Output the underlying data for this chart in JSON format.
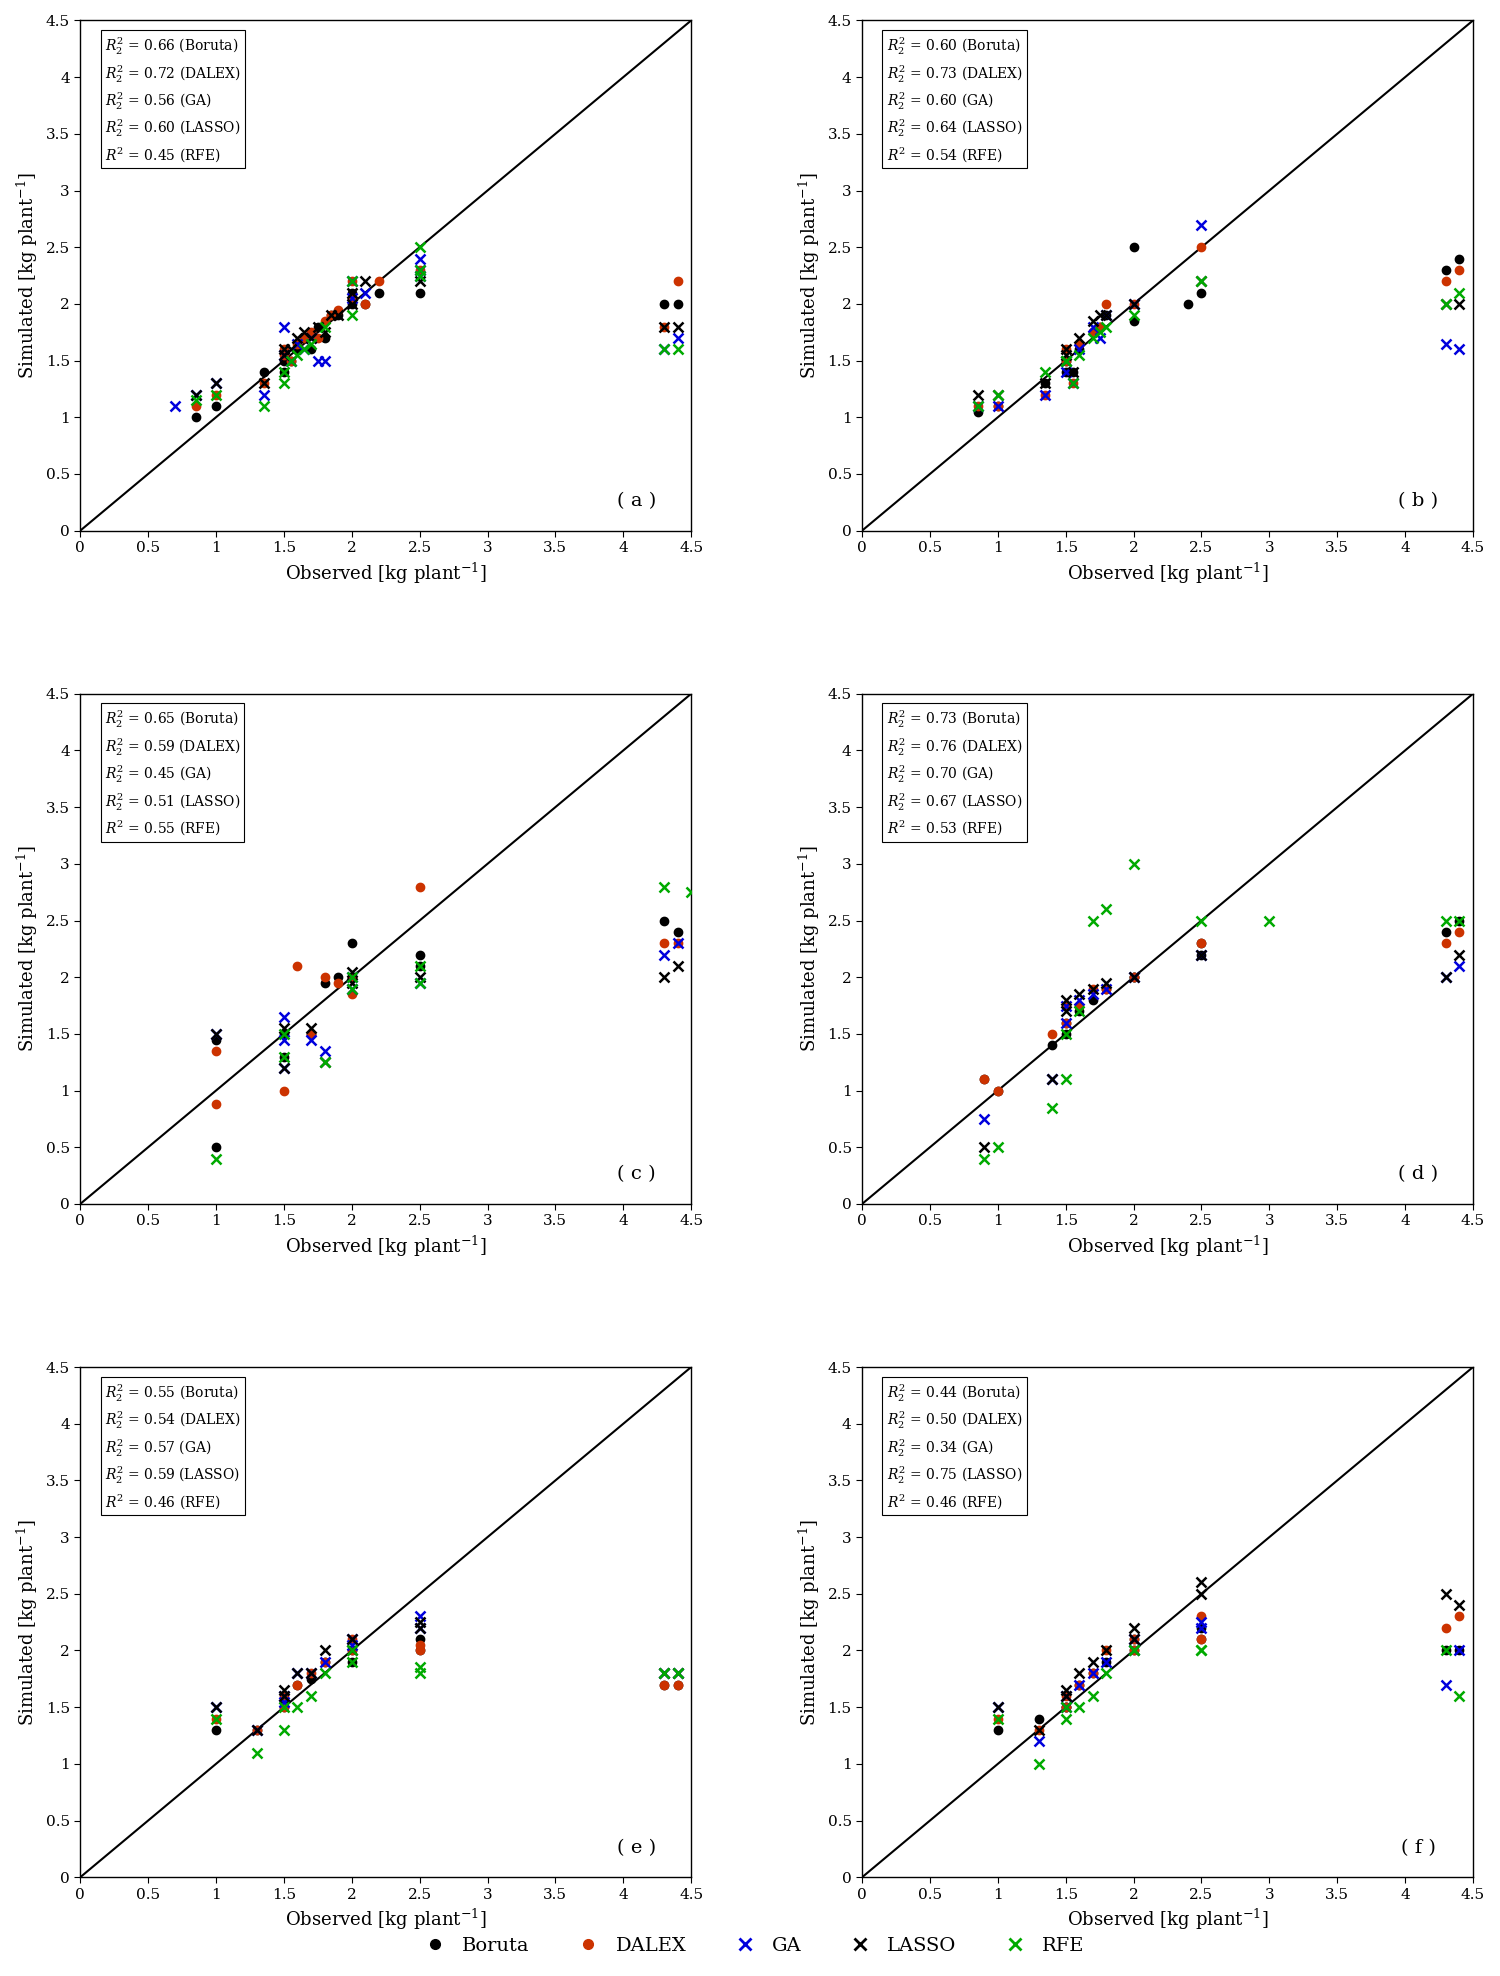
{
  "panels": [
    {
      "label": "( a )",
      "r2": {
        "Boruta": 0.66,
        "DALEX": 0.72,
        "GA": 0.56,
        "LASSO": 0.6,
        "RFE": 0.45
      },
      "Boruta": {
        "obs": [
          0.85,
          1.0,
          1.35,
          1.5,
          1.5,
          1.55,
          1.6,
          1.65,
          1.7,
          1.75,
          1.8,
          1.85,
          1.9,
          2.0,
          2.0,
          2.0,
          2.1,
          2.2,
          2.5,
          4.3,
          4.4
        ],
        "sim": [
          1.0,
          1.1,
          1.4,
          1.5,
          1.4,
          1.5,
          1.6,
          1.7,
          1.6,
          1.8,
          1.7,
          1.9,
          1.9,
          2.0,
          2.1,
          2.05,
          2.0,
          2.1,
          2.1,
          2.0,
          2.0
        ]
      },
      "DALEX": {
        "obs": [
          0.85,
          1.0,
          1.35,
          1.5,
          1.5,
          1.55,
          1.6,
          1.65,
          1.7,
          1.75,
          1.8,
          1.85,
          1.9,
          2.0,
          2.0,
          2.1,
          2.2,
          2.5,
          4.3,
          4.4
        ],
        "sim": [
          1.1,
          1.2,
          1.3,
          1.55,
          1.6,
          1.5,
          1.65,
          1.7,
          1.75,
          1.7,
          1.85,
          1.9,
          1.95,
          2.05,
          2.2,
          2.0,
          2.2,
          2.3,
          1.8,
          2.2
        ]
      },
      "GA": {
        "obs": [
          0.7,
          0.85,
          1.0,
          1.35,
          1.5,
          1.5,
          1.55,
          1.6,
          1.65,
          1.7,
          1.75,
          1.8,
          2.0,
          2.0,
          2.1,
          2.5,
          2.5,
          2.5,
          4.3,
          4.4
        ],
        "sim": [
          1.1,
          1.2,
          1.3,
          1.2,
          1.55,
          1.8,
          1.5,
          1.65,
          1.6,
          1.7,
          1.5,
          1.5,
          2.05,
          2.2,
          2.1,
          2.25,
          2.3,
          2.4,
          1.6,
          1.7
        ]
      },
      "LASSO": {
        "obs": [
          0.85,
          1.0,
          1.35,
          1.5,
          1.5,
          1.55,
          1.6,
          1.65,
          1.7,
          1.75,
          1.8,
          1.85,
          1.9,
          2.0,
          2.0,
          2.1,
          2.5,
          4.3,
          4.4
        ],
        "sim": [
          1.2,
          1.3,
          1.3,
          1.6,
          1.55,
          1.6,
          1.7,
          1.75,
          1.7,
          1.8,
          1.75,
          1.9,
          1.9,
          2.0,
          2.1,
          2.2,
          2.2,
          1.8,
          1.8
        ]
      },
      "RFE": {
        "obs": [
          0.85,
          1.0,
          1.35,
          1.5,
          1.5,
          1.55,
          1.6,
          1.65,
          1.7,
          1.8,
          2.0,
          2.0,
          2.5,
          2.5,
          2.5,
          4.3,
          4.4
        ],
        "sim": [
          1.15,
          1.2,
          1.1,
          1.3,
          1.4,
          1.5,
          1.55,
          1.6,
          1.65,
          1.8,
          1.9,
          2.2,
          2.25,
          2.3,
          2.5,
          1.6,
          1.6
        ]
      }
    },
    {
      "label": "( b )",
      "r2": {
        "Boruta": 0.6,
        "DALEX": 0.73,
        "GA": 0.6,
        "LASSO": 0.64,
        "RFE": 0.54
      },
      "Boruta": {
        "obs": [
          0.85,
          1.0,
          1.35,
          1.5,
          1.5,
          1.55,
          1.6,
          1.7,
          1.75,
          1.8,
          2.0,
          2.0,
          2.4,
          2.5,
          4.3,
          4.4
        ],
        "sim": [
          1.05,
          1.1,
          1.3,
          1.4,
          1.5,
          1.4,
          1.6,
          1.75,
          1.8,
          1.9,
          1.85,
          2.5,
          2.0,
          2.1,
          2.3,
          2.4
        ]
      },
      "DALEX": {
        "obs": [
          0.85,
          1.0,
          1.35,
          1.5,
          1.5,
          1.55,
          1.6,
          1.7,
          1.75,
          1.8,
          2.0,
          2.5,
          4.3,
          4.4
        ],
        "sim": [
          1.1,
          1.1,
          1.2,
          1.5,
          1.6,
          1.3,
          1.65,
          1.75,
          1.8,
          2.0,
          2.0,
          2.5,
          2.2,
          2.3
        ]
      },
      "GA": {
        "obs": [
          0.85,
          1.0,
          1.35,
          1.5,
          1.5,
          1.55,
          1.6,
          1.7,
          1.75,
          1.8,
          2.0,
          2.5,
          4.3,
          4.4
        ],
        "sim": [
          1.1,
          1.1,
          1.2,
          1.4,
          1.5,
          1.3,
          1.6,
          1.8,
          1.7,
          1.9,
          2.0,
          2.7,
          1.65,
          1.6
        ]
      },
      "LASSO": {
        "obs": [
          0.85,
          1.0,
          1.35,
          1.5,
          1.5,
          1.55,
          1.6,
          1.7,
          1.75,
          1.8,
          2.0,
          2.5,
          4.3,
          4.4
        ],
        "sim": [
          1.2,
          1.2,
          1.3,
          1.55,
          1.6,
          1.4,
          1.7,
          1.85,
          1.9,
          1.9,
          2.0,
          2.2,
          2.0,
          2.0
        ]
      },
      "RFE": {
        "obs": [
          0.85,
          1.0,
          1.35,
          1.5,
          1.5,
          1.55,
          1.6,
          1.7,
          1.75,
          1.8,
          2.0,
          2.5,
          4.3,
          4.4
        ],
        "sim": [
          1.1,
          1.2,
          1.4,
          1.5,
          1.5,
          1.3,
          1.55,
          1.7,
          1.75,
          1.8,
          1.9,
          2.2,
          2.0,
          2.1
        ]
      }
    },
    {
      "label": "( c )",
      "r2": {
        "Boruta": 0.65,
        "DALEX": 0.59,
        "GA": 0.45,
        "LASSO": 0.51,
        "RFE": 0.55
      },
      "Boruta": {
        "obs": [
          1.0,
          1.0,
          1.5,
          1.5,
          1.7,
          1.8,
          1.9,
          2.0,
          2.0,
          2.5,
          2.5,
          4.3,
          4.4
        ],
        "sim": [
          1.45,
          0.5,
          1.5,
          1.3,
          1.5,
          1.95,
          2.0,
          2.3,
          2.0,
          2.2,
          2.1,
          2.5,
          2.4
        ]
      },
      "DALEX": {
        "obs": [
          1.0,
          1.0,
          1.5,
          1.6,
          1.7,
          1.8,
          1.9,
          2.0,
          2.0,
          2.5,
          4.3,
          4.4
        ],
        "sim": [
          1.35,
          0.88,
          1.0,
          2.1,
          1.5,
          2.0,
          1.95,
          2.0,
          1.85,
          2.8,
          2.3,
          2.3
        ]
      },
      "GA": {
        "obs": [
          1.0,
          1.5,
          1.5,
          1.5,
          1.7,
          1.8,
          2.0,
          2.0,
          2.5,
          4.3,
          4.4
        ],
        "sim": [
          1.5,
          1.45,
          1.2,
          1.65,
          1.45,
          1.35,
          2.0,
          1.9,
          1.95,
          2.2,
          2.3
        ]
      },
      "LASSO": {
        "obs": [
          1.0,
          1.5,
          1.5,
          1.7,
          1.8,
          2.0,
          2.0,
          2.5,
          4.3,
          4.4
        ],
        "sim": [
          1.5,
          1.55,
          1.2,
          1.55,
          1.25,
          2.05,
          1.95,
          2.0,
          2.0,
          2.1
        ]
      },
      "RFE": {
        "obs": [
          1.0,
          1.5,
          1.5,
          1.8,
          2.0,
          2.0,
          2.5,
          2.5,
          4.3,
          4.5
        ],
        "sim": [
          0.4,
          1.5,
          1.3,
          1.25,
          1.9,
          2.0,
          1.95,
          2.1,
          2.8,
          2.75
        ]
      }
    },
    {
      "label": "( d )",
      "r2": {
        "Boruta": 0.73,
        "DALEX": 0.76,
        "GA": 0.7,
        "LASSO": 0.67,
        "RFE": 0.53
      },
      "Boruta": {
        "obs": [
          0.9,
          1.0,
          1.4,
          1.5,
          1.5,
          1.6,
          1.7,
          1.8,
          2.0,
          2.0,
          2.5,
          2.5,
          4.3,
          4.4
        ],
        "sim": [
          1.1,
          1.0,
          1.4,
          1.5,
          1.6,
          1.7,
          1.8,
          1.9,
          2.0,
          2.0,
          2.2,
          2.3,
          2.4,
          2.5
        ]
      },
      "DALEX": {
        "obs": [
          0.9,
          1.0,
          1.4,
          1.5,
          1.5,
          1.6,
          1.7,
          1.8,
          2.0,
          2.5,
          4.3,
          4.4
        ],
        "sim": [
          1.1,
          1.0,
          1.5,
          1.6,
          1.75,
          1.75,
          1.9,
          1.9,
          2.0,
          2.3,
          2.3,
          2.4
        ]
      },
      "GA": {
        "obs": [
          0.9,
          1.4,
          1.5,
          1.5,
          1.6,
          1.7,
          1.8,
          2.0,
          2.5,
          4.3,
          4.4
        ],
        "sim": [
          0.75,
          1.1,
          1.6,
          1.75,
          1.8,
          1.85,
          1.9,
          2.0,
          2.2,
          2.0,
          2.1
        ]
      },
      "LASSO": {
        "obs": [
          0.9,
          1.4,
          1.5,
          1.5,
          1.6,
          1.7,
          1.8,
          2.0,
          2.5,
          4.3,
          4.4
        ],
        "sim": [
          0.5,
          1.1,
          1.7,
          1.8,
          1.85,
          1.9,
          1.95,
          2.0,
          2.2,
          2.0,
          2.2
        ]
      },
      "RFE": {
        "obs": [
          0.9,
          1.0,
          1.4,
          1.5,
          1.5,
          1.6,
          1.7,
          1.8,
          2.0,
          2.5,
          3.0,
          4.3,
          4.4
        ],
        "sim": [
          0.4,
          0.5,
          0.85,
          1.1,
          1.5,
          1.7,
          2.5,
          2.6,
          3.0,
          2.5,
          2.5,
          2.5,
          2.5
        ]
      }
    },
    {
      "label": "( e )",
      "r2": {
        "Boruta": 0.55,
        "DALEX": 0.54,
        "GA": 0.57,
        "LASSO": 0.59,
        "RFE": 0.46
      },
      "Boruta": {
        "obs": [
          1.0,
          1.3,
          1.5,
          1.5,
          1.6,
          1.7,
          1.8,
          2.0,
          2.0,
          2.5,
          2.5,
          4.3,
          4.4
        ],
        "sim": [
          1.3,
          1.3,
          1.5,
          1.55,
          1.7,
          1.75,
          1.9,
          1.9,
          2.0,
          2.0,
          2.1,
          1.7,
          1.7
        ]
      },
      "DALEX": {
        "obs": [
          1.0,
          1.3,
          1.5,
          1.5,
          1.6,
          1.7,
          1.8,
          2.0,
          2.0,
          2.5,
          2.5,
          4.3,
          4.4
        ],
        "sim": [
          1.4,
          1.3,
          1.5,
          1.6,
          1.7,
          1.8,
          1.9,
          2.0,
          2.1,
          2.0,
          2.05,
          1.7,
          1.7
        ]
      },
      "GA": {
        "obs": [
          1.0,
          1.3,
          1.5,
          1.5,
          1.6,
          1.7,
          1.8,
          2.0,
          2.0,
          2.5,
          2.5,
          4.3,
          4.4
        ],
        "sim": [
          1.5,
          1.3,
          1.6,
          1.55,
          1.8,
          1.8,
          1.9,
          2.1,
          2.05,
          2.2,
          2.3,
          1.8,
          1.8
        ]
      },
      "LASSO": {
        "obs": [
          1.0,
          1.3,
          1.5,
          1.5,
          1.6,
          1.7,
          1.8,
          2.0,
          2.0,
          2.5,
          2.5,
          4.3,
          4.4
        ],
        "sim": [
          1.5,
          1.3,
          1.6,
          1.65,
          1.8,
          1.8,
          2.0,
          2.0,
          2.1,
          2.2,
          2.25,
          1.8,
          1.8
        ]
      },
      "RFE": {
        "obs": [
          1.0,
          1.3,
          1.5,
          1.5,
          1.6,
          1.7,
          1.8,
          2.0,
          2.0,
          2.5,
          2.5,
          4.3,
          4.4
        ],
        "sim": [
          1.4,
          1.1,
          1.3,
          1.5,
          1.5,
          1.6,
          1.8,
          1.9,
          2.0,
          1.8,
          1.85,
          1.8,
          1.8
        ]
      }
    },
    {
      "label": "( f )",
      "r2": {
        "Boruta": 0.44,
        "DALEX": 0.5,
        "GA": 0.34,
        "LASSO": 0.75,
        "RFE": 0.46
      },
      "Boruta": {
        "obs": [
          1.0,
          1.3,
          1.5,
          1.5,
          1.6,
          1.7,
          1.8,
          2.0,
          2.0,
          2.5,
          2.5,
          4.3,
          4.4
        ],
        "sim": [
          1.3,
          1.4,
          1.5,
          1.5,
          1.7,
          1.8,
          1.9,
          2.0,
          2.1,
          2.2,
          2.1,
          2.0,
          2.0
        ]
      },
      "DALEX": {
        "obs": [
          1.0,
          1.3,
          1.5,
          1.5,
          1.6,
          1.7,
          1.8,
          2.0,
          2.0,
          2.5,
          2.5,
          4.3,
          4.4
        ],
        "sim": [
          1.4,
          1.3,
          1.5,
          1.6,
          1.7,
          1.8,
          2.0,
          2.0,
          2.1,
          2.3,
          2.1,
          2.2,
          2.3
        ]
      },
      "GA": {
        "obs": [
          1.0,
          1.3,
          1.5,
          1.5,
          1.6,
          1.7,
          1.8,
          2.0,
          2.0,
          2.5,
          2.5,
          4.3,
          4.4
        ],
        "sim": [
          1.5,
          1.2,
          1.5,
          1.6,
          1.7,
          1.8,
          1.9,
          2.0,
          2.1,
          2.2,
          2.25,
          1.7,
          2.0
        ]
      },
      "LASSO": {
        "obs": [
          1.0,
          1.3,
          1.5,
          1.5,
          1.6,
          1.7,
          1.8,
          2.0,
          2.0,
          2.5,
          2.5,
          4.3,
          4.4
        ],
        "sim": [
          1.5,
          1.3,
          1.6,
          1.65,
          1.8,
          1.9,
          2.0,
          2.1,
          2.2,
          2.5,
          2.6,
          2.5,
          2.4
        ]
      },
      "RFE": {
        "obs": [
          1.0,
          1.3,
          1.5,
          1.5,
          1.6,
          1.7,
          1.8,
          2.0,
          2.0,
          2.5,
          2.5,
          4.3,
          4.4
        ],
        "sim": [
          1.4,
          1.0,
          1.4,
          1.5,
          1.5,
          1.6,
          1.8,
          2.0,
          2.0,
          2.0,
          2.0,
          2.0,
          1.6
        ]
      }
    }
  ],
  "methods": [
    "Boruta",
    "DALEX",
    "GA",
    "LASSO",
    "RFE"
  ],
  "method_colors": {
    "Boruta": "#000000",
    "DALEX": "#cc3300",
    "GA": "#0000dd",
    "LASSO": "#000000",
    "RFE": "#00aa00"
  },
  "method_markers": {
    "Boruta": "o",
    "DALEX": "o",
    "GA": "x",
    "LASSO": "x",
    "RFE": "x"
  },
  "xlim": [
    0,
    4.5
  ],
  "ylim": [
    0,
    4.5
  ],
  "xticks": [
    0,
    0.5,
    1,
    1.5,
    2,
    2.5,
    3,
    3.5,
    4,
    4.5
  ],
  "yticks": [
    0,
    0.5,
    1,
    1.5,
    2,
    2.5,
    3,
    3.5,
    4,
    4.5
  ],
  "tick_labels": [
    "0",
    "0.5",
    "1",
    "1.5",
    "2",
    "2.5",
    "3",
    "3.5",
    "4",
    "4.5"
  ],
  "xlabel": "Observed [kg plant$^{-1}$]",
  "ylabel": "Simulated [kg plant$^{-1}$]"
}
